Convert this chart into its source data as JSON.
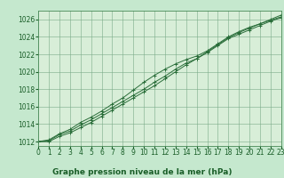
{
  "title": "Graphe pression niveau de la mer (hPa)",
  "background_color": "#c5e8ce",
  "plot_bg_color": "#d8eed8",
  "grid_color": "#7aaa88",
  "line_color": "#2a6e3a",
  "marker_color": "#2a6e3a",
  "xlim": [
    0,
    23
  ],
  "ylim": [
    1011.5,
    1027.0
  ],
  "yticks": [
    1012,
    1014,
    1016,
    1018,
    1020,
    1022,
    1024,
    1026
  ],
  "xticks": [
    0,
    1,
    2,
    3,
    4,
    5,
    6,
    7,
    8,
    9,
    10,
    11,
    12,
    13,
    14,
    15,
    16,
    17,
    18,
    19,
    20,
    21,
    22,
    23
  ],
  "series1": [
    1012.0,
    1012.1,
    1012.8,
    1013.2,
    1013.9,
    1014.5,
    1015.2,
    1015.9,
    1016.6,
    1017.3,
    1018.0,
    1018.8,
    1019.5,
    1020.3,
    1021.0,
    1021.5,
    1022.2,
    1023.0,
    1023.8,
    1024.3,
    1024.8,
    1025.3,
    1025.8,
    1026.2
  ],
  "series2": [
    1012.0,
    1012.2,
    1012.9,
    1013.4,
    1014.2,
    1014.8,
    1015.5,
    1016.3,
    1017.0,
    1017.9,
    1018.8,
    1019.6,
    1020.3,
    1020.9,
    1021.4,
    1021.8,
    1022.4,
    1023.2,
    1024.0,
    1024.6,
    1025.1,
    1025.5,
    1025.9,
    1026.3
  ],
  "series3": [
    1012.0,
    1012.0,
    1012.6,
    1013.0,
    1013.6,
    1014.2,
    1014.9,
    1015.6,
    1016.3,
    1017.0,
    1017.7,
    1018.4,
    1019.2,
    1020.0,
    1020.8,
    1021.5,
    1022.3,
    1023.1,
    1023.9,
    1024.5,
    1025.0,
    1025.5,
    1026.0,
    1026.5
  ],
  "title_fontsize": 6.5,
  "tick_fontsize": 5.5,
  "title_color": "#1a5e28",
  "tick_color": "#1a5e28",
  "spine_color": "#4a8a58"
}
